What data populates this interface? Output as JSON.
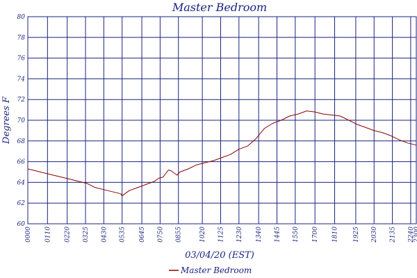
{
  "chart_data": {
    "type": "line",
    "title": "Master Bedroom",
    "xlabel": "03/04/20 (EST)",
    "ylabel": "Degrees F",
    "ylim": [
      60,
      80
    ],
    "yticks": [
      "60",
      "62",
      "64",
      "66",
      "68",
      "70",
      "72",
      "74",
      "76",
      "78",
      "80"
    ],
    "xlim_minutes": [
      0,
      1380
    ],
    "xticks": [
      "00:00",
      "01:10",
      "02:20",
      "03:25",
      "04:30",
      "05:35",
      "06:45",
      "07:50",
      "08:55",
      "10:20",
      "11:25",
      "12:30",
      "13:40",
      "14:45",
      "15:50",
      "17:00",
      "18:10",
      "19:25",
      "20:30",
      "21:35",
      "22:40",
      "23:00"
    ],
    "grid": true,
    "legend_position": "bottom-center",
    "line_color": "#8b0000",
    "grid_color": "#1a237e",
    "text_color": "#1a237e",
    "series": [
      {
        "name": "Master Bedroom",
        "x": [
          "00:00",
          "00:30",
          "01:00",
          "01:30",
          "02:00",
          "02:30",
          "03:00",
          "03:30",
          "04:00",
          "04:30",
          "05:00",
          "05:30",
          "05:35",
          "06:00",
          "06:30",
          "07:00",
          "07:30",
          "07:45",
          "08:00",
          "08:20",
          "08:30",
          "08:50",
          "09:00",
          "09:30",
          "10:00",
          "10:30",
          "11:00",
          "11:30",
          "12:00",
          "12:30",
          "13:00",
          "13:30",
          "14:00",
          "14:30",
          "15:00",
          "15:30",
          "16:00",
          "16:30",
          "17:00",
          "17:30",
          "18:00",
          "18:30",
          "19:00",
          "19:30",
          "20:00",
          "20:30",
          "21:00",
          "21:30",
          "22:00",
          "22:30",
          "23:00"
        ],
        "values": [
          65.3,
          65.1,
          64.9,
          64.7,
          64.5,
          64.3,
          64.1,
          63.9,
          63.5,
          63.3,
          63.1,
          62.9,
          62.7,
          63.2,
          63.5,
          63.8,
          64.1,
          64.4,
          64.5,
          65.2,
          65.1,
          64.7,
          65.0,
          65.3,
          65.7,
          65.9,
          66.1,
          66.4,
          66.7,
          67.2,
          67.5,
          68.2,
          69.2,
          69.7,
          70.0,
          70.4,
          70.6,
          70.9,
          70.8,
          70.6,
          70.5,
          70.4,
          70.0,
          69.6,
          69.3,
          69.0,
          68.8,
          68.5,
          68.1,
          67.8,
          67.6
        ]
      }
    ]
  }
}
